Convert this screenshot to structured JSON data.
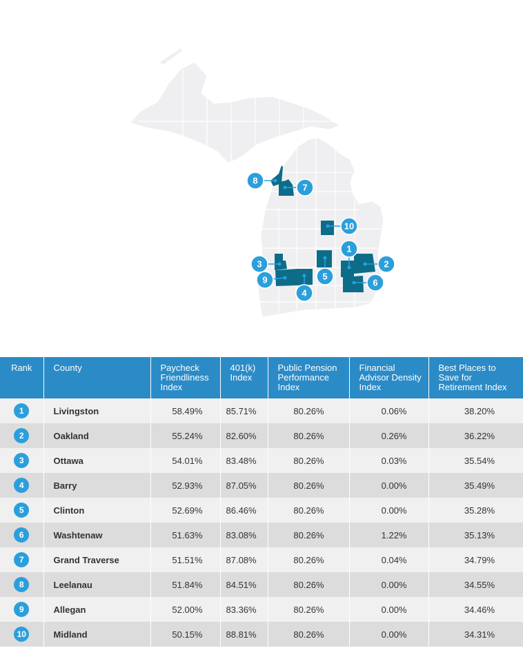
{
  "map": {
    "base_color": "#efeff1",
    "border_color": "#ffffff",
    "highlight_color": "#0d6d89",
    "marker_color": "#2b9fdb",
    "markers": [
      {
        "rank": "1",
        "county": "Livingston"
      },
      {
        "rank": "2",
        "county": "Oakland"
      },
      {
        "rank": "3",
        "county": "Ottawa"
      },
      {
        "rank": "4",
        "county": "Barry"
      },
      {
        "rank": "5",
        "county": "Clinton"
      },
      {
        "rank": "6",
        "county": "Washtenaw"
      },
      {
        "rank": "7",
        "county": "Grand Traverse"
      },
      {
        "rank": "8",
        "county": "Leelanau"
      },
      {
        "rank": "9",
        "county": "Allegan"
      },
      {
        "rank": "10",
        "county": "Midland"
      }
    ]
  },
  "table": {
    "header_color": "#2b8bc6",
    "headers": {
      "rank": "Rank",
      "county": "County",
      "paycheck": "Paycheck Friendliness Index",
      "k401": "401(k) Index",
      "pension": "Public Pension Performance Index",
      "advisor": "Financial Advisor Density Index",
      "best": "Best Places to Save for Retirement Index"
    },
    "rows": [
      {
        "rank": "1",
        "county": "Livingston",
        "paycheck": "58.49%",
        "k401": "85.71%",
        "pension": "80.26%",
        "advisor": "0.06%",
        "best": "38.20%"
      },
      {
        "rank": "2",
        "county": "Oakland",
        "paycheck": "55.24%",
        "k401": "82.60%",
        "pension": "80.26%",
        "advisor": "0.26%",
        "best": "36.22%"
      },
      {
        "rank": "3",
        "county": "Ottawa",
        "paycheck": "54.01%",
        "k401": "83.48%",
        "pension": "80.26%",
        "advisor": "0.03%",
        "best": "35.54%"
      },
      {
        "rank": "4",
        "county": "Barry",
        "paycheck": "52.93%",
        "k401": "87.05%",
        "pension": "80.26%",
        "advisor": "0.00%",
        "best": "35.49%"
      },
      {
        "rank": "5",
        "county": "Clinton",
        "paycheck": "52.69%",
        "k401": "86.46%",
        "pension": "80.26%",
        "advisor": "0.00%",
        "best": "35.28%"
      },
      {
        "rank": "6",
        "county": "Washtenaw",
        "paycheck": "51.63%",
        "k401": "83.08%",
        "pension": "80.26%",
        "advisor": "1.22%",
        "best": "35.13%"
      },
      {
        "rank": "7",
        "county": "Grand Traverse",
        "paycheck": "51.51%",
        "k401": "87.08%",
        "pension": "80.26%",
        "advisor": "0.04%",
        "best": "34.79%"
      },
      {
        "rank": "8",
        "county": "Leelanau",
        "paycheck": "51.84%",
        "k401": "84.51%",
        "pension": "80.26%",
        "advisor": "0.00%",
        "best": "34.55%"
      },
      {
        "rank": "9",
        "county": "Allegan",
        "paycheck": "52.00%",
        "k401": "83.36%",
        "pension": "80.26%",
        "advisor": "0.00%",
        "best": "34.46%"
      },
      {
        "rank": "10",
        "county": "Midland",
        "paycheck": "50.15%",
        "k401": "88.81%",
        "pension": "80.26%",
        "advisor": "0.00%",
        "best": "34.31%"
      }
    ]
  }
}
